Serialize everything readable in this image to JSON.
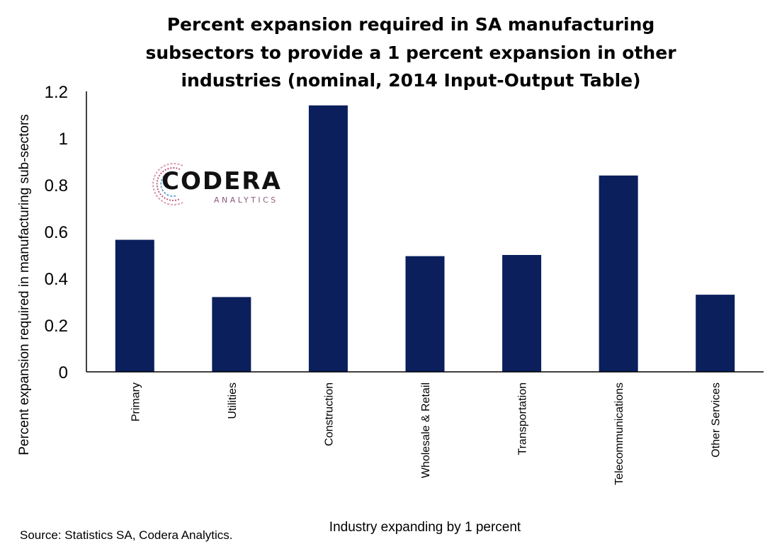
{
  "chart_data": {
    "type": "bar",
    "title_lines": [
      "Percent expansion required in SA manufacturing",
      "subsectors to provide a 1 percent expansion in other",
      "industries (nominal, 2014 Input-Output Table)"
    ],
    "categories": [
      "Primary",
      "Utilities",
      "Construction",
      "Wholesale & Retail",
      "Transportation",
      "Telecommunications",
      "Other Services"
    ],
    "values": [
      0.565,
      0.32,
      1.14,
      0.495,
      0.5,
      0.84,
      0.33
    ],
    "ylabel": "Percent expansion required in manufacturing sub-sectors",
    "xlabel": "Industry expanding by 1 percent",
    "ylim": [
      0,
      1.2
    ],
    "yticks": [
      "0",
      "0.2",
      "0.4",
      "0.6",
      "0.8",
      "1",
      "1.2"
    ],
    "grid": false,
    "bar_color": "#0a1f5c"
  },
  "logo": {
    "word": "CODERA",
    "sub": "ANALYTICS"
  },
  "source": "Source: Statistics SA, Codera Analytics."
}
